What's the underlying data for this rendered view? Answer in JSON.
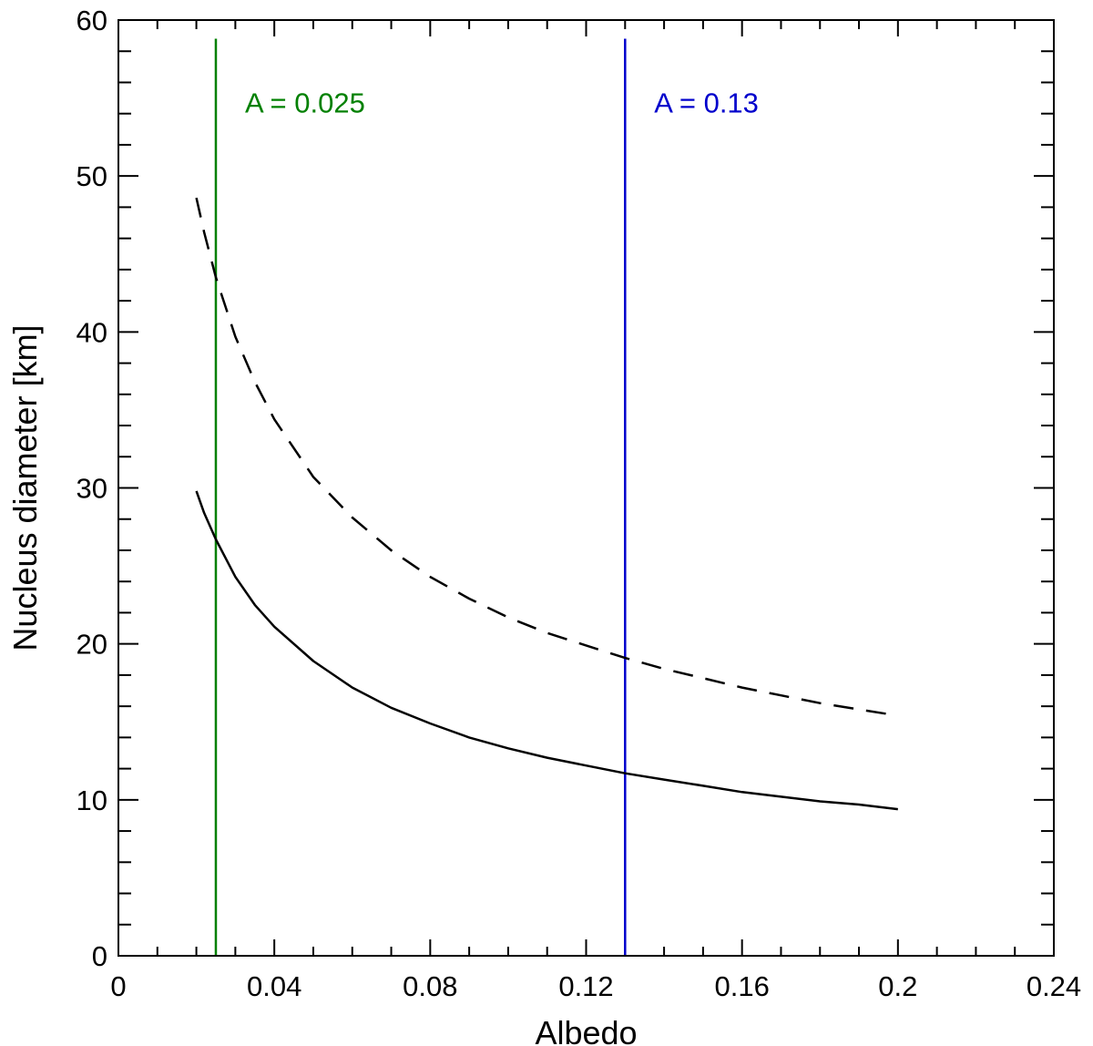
{
  "chart_data": {
    "type": "line",
    "title": "",
    "xlabel": "Albedo",
    "ylabel": "Nucleus diameter [km]",
    "xlim": [
      0,
      0.24
    ],
    "ylim": [
      0,
      60
    ],
    "xticks": [
      0,
      0.04,
      0.08,
      0.12,
      0.16,
      0.2,
      0.24
    ],
    "xtick_labels": [
      "0",
      "0.04",
      "0.08",
      "0.12",
      "0.16",
      "0.2",
      "0.24"
    ],
    "yticks": [
      0,
      10,
      20,
      30,
      40,
      50,
      60
    ],
    "ytick_labels": [
      "0",
      "10",
      "20",
      "30",
      "40",
      "50",
      "60"
    ],
    "x_minor_step": 0.01,
    "y_minor_step": 2,
    "grid": false,
    "series": [
      {
        "name": "upper (dashed)",
        "style": "dashed",
        "color": "#000000",
        "x": [
          0.02,
          0.022,
          0.025,
          0.03,
          0.035,
          0.04,
          0.05,
          0.06,
          0.07,
          0.08,
          0.09,
          0.1,
          0.11,
          0.12,
          0.13,
          0.14,
          0.15,
          0.16,
          0.17,
          0.18,
          0.19,
          0.2
        ],
        "y": [
          48.6,
          46.4,
          43.5,
          39.7,
          36.8,
          34.4,
          30.7,
          28.1,
          26.0,
          24.3,
          22.9,
          21.7,
          20.7,
          19.9,
          19.1,
          18.4,
          17.8,
          17.2,
          16.7,
          16.2,
          15.8,
          15.4
        ]
      },
      {
        "name": "lower (solid)",
        "style": "solid",
        "color": "#000000",
        "x": [
          0.02,
          0.022,
          0.025,
          0.03,
          0.035,
          0.04,
          0.05,
          0.06,
          0.07,
          0.08,
          0.09,
          0.1,
          0.11,
          0.12,
          0.13,
          0.14,
          0.15,
          0.16,
          0.17,
          0.18,
          0.19,
          0.2
        ],
        "y": [
          29.8,
          28.4,
          26.7,
          24.3,
          22.5,
          21.1,
          18.9,
          17.2,
          15.9,
          14.9,
          14.0,
          13.3,
          12.7,
          12.2,
          11.7,
          11.3,
          10.9,
          10.5,
          10.2,
          9.9,
          9.7,
          9.4
        ]
      }
    ],
    "vlines": [
      {
        "x": 0.025,
        "color": "#008000",
        "label": "A = 0.025"
      },
      {
        "x": 0.13,
        "color": "#0000cc",
        "label": "A = 0.13"
      }
    ]
  }
}
